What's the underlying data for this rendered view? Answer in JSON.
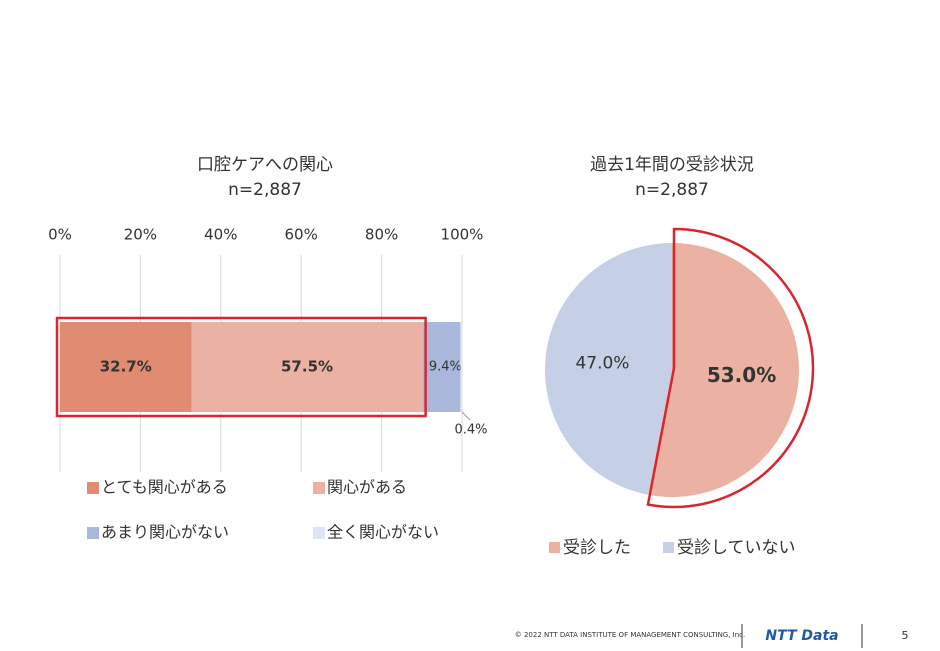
{
  "chart_data": [
    {
      "type": "stacked-bar-horizontal",
      "title": "口腔ケアへの関心",
      "subtitle": "n=2,887",
      "categories": [
        null
      ],
      "series": [
        {
          "name": "とても関心がある",
          "color": "#e08b72",
          "values": [
            32.7
          ],
          "value_labels": [
            "32.7%"
          ]
        },
        {
          "name": "関心がある",
          "color": "#ebb1a2",
          "values": [
            57.5
          ],
          "value_labels": [
            "57.5%"
          ]
        },
        {
          "name": "あまり関心がない",
          "color": "#a9b8da",
          "values": [
            9.4
          ],
          "value_labels": [
            "9.4%"
          ]
        },
        {
          "name": "全く関心がない",
          "color": "#dde4f2",
          "values": [
            0.4
          ],
          "value_labels": [
            "0.4%"
          ]
        }
      ],
      "xlim": [
        0,
        100
      ],
      "xticks": [
        {
          "value": 0,
          "label": "0%"
        },
        {
          "value": 20,
          "label": "20%"
        },
        {
          "value": 40,
          "label": "40%"
        },
        {
          "value": 60,
          "label": "60%"
        },
        {
          "value": 80,
          "label": "80%"
        },
        {
          "value": 100,
          "label": "100%"
        }
      ],
      "grid": true
    },
    {
      "type": "pie",
      "title": "過去1年間の受診状況",
      "subtitle": "n=2,887",
      "categories": [
        "受診した",
        "受診していない"
      ],
      "values": [
        53.0,
        47.0
      ],
      "value_labels": [
        "53.0%",
        "47.0%"
      ],
      "colors": [
        "#ebb1a2",
        "#c5d0e6"
      ]
    }
  ],
  "footer": {
    "copyright": "© 2022 NTT DATA INSTITUTE OF MANAGEMENT CONSULTING, Inc.",
    "logo": "NTT Data",
    "page": "5"
  }
}
